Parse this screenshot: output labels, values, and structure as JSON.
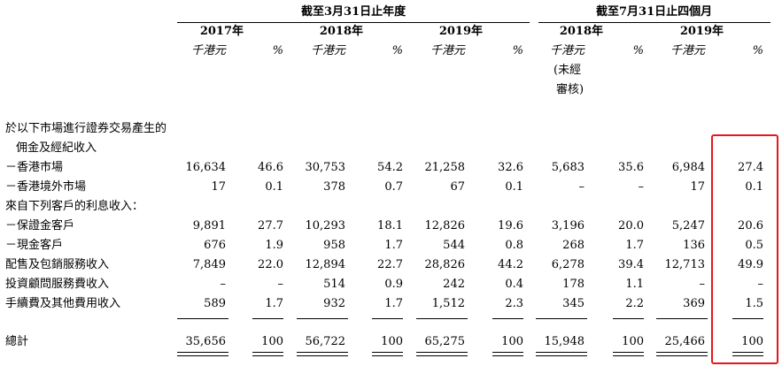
{
  "header": {
    "group1": "截至3月31日止年度",
    "group2": "截至7月31日止四個月",
    "years": [
      "2017年",
      "2018年",
      "2019年",
      "2018年",
      "2019年"
    ],
    "unit": "千港元",
    "pct": "%",
    "unaudited": [
      "(未經",
      "審核)"
    ]
  },
  "rows": [
    {
      "label": "於以下市場進行證券交易產生的",
      "values": []
    },
    {
      "label": "佣金及經紀收入",
      "indent": true,
      "values": []
    },
    {
      "label": "－香港市場",
      "values": [
        "16,634",
        "46.6",
        "30,753",
        "54.2",
        "21,258",
        "32.6",
        "5,683",
        "35.6",
        "6,984",
        "27.4"
      ]
    },
    {
      "label": "－香港境外市場",
      "values": [
        "17",
        "0.1",
        "378",
        "0.7",
        "67",
        "0.1",
        "–",
        "–",
        "17",
        "0.1"
      ]
    },
    {
      "label": "來自下列客戶的利息收入：",
      "values": []
    },
    {
      "label": "－保證金客戶",
      "values": [
        "9,891",
        "27.7",
        "10,293",
        "18.1",
        "12,826",
        "19.6",
        "3,196",
        "20.0",
        "5,247",
        "20.6"
      ]
    },
    {
      "label": "－現金客戶",
      "values": [
        "676",
        "1.9",
        "958",
        "1.7",
        "544",
        "0.8",
        "268",
        "1.7",
        "136",
        "0.5"
      ]
    },
    {
      "label": "配售及包銷服務收入",
      "values": [
        "7,849",
        "22.0",
        "12,894",
        "22.7",
        "28,826",
        "44.2",
        "6,278",
        "39.4",
        "12,713",
        "49.9"
      ]
    },
    {
      "label": "投資顧問服務費收入",
      "values": [
        "–",
        "–",
        "514",
        "0.9",
        "242",
        "0.4",
        "178",
        "1.1",
        "–",
        "–"
      ]
    },
    {
      "label": "手續費及其他費用收入",
      "values": [
        "589",
        "1.7",
        "932",
        "1.7",
        "1,512",
        "2.3",
        "345",
        "2.2",
        "369",
        "1.5"
      ]
    }
  ],
  "total": {
    "label": "總計",
    "values": [
      "35,656",
      "100",
      "56,722",
      "100",
      "65,275",
      "100",
      "15,948",
      "100",
      "25,466",
      "100"
    ]
  },
  "highlight_color": "#e8151c"
}
